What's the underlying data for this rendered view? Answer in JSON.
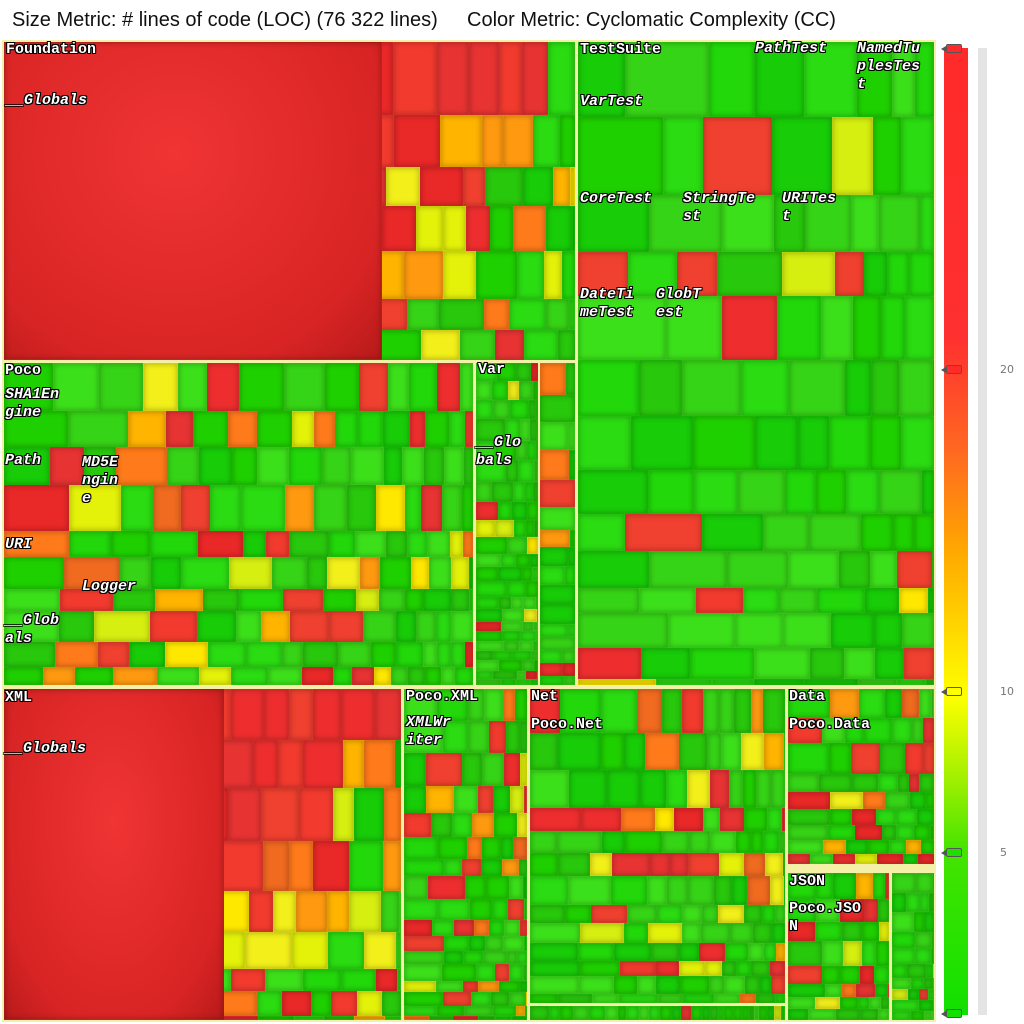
{
  "header": {
    "size_metric": "Size Metric: # lines of code (LOC) (76 322 lines)",
    "color_metric": "Color Metric: Cyclomatic Complexity (CC)"
  },
  "packages": {
    "foundation": {
      "name": "Foundation",
      "globals": "__Globals"
    },
    "foundation_poco": {
      "name": "Poco",
      "classes": [
        "SHA1En\ngine",
        "Path",
        "MD5E\nngin\ne",
        "URI",
        "Logger",
        "__Glob\nals"
      ]
    },
    "foundation_var": {
      "name": "Var",
      "globals": "__Glo\nbals"
    },
    "testsuite": {
      "name": "TestSuite",
      "classes": [
        "PathTest",
        "NamedTu\nplesTes\nt",
        "VarTest",
        "CoreTest",
        "StringTe\nst",
        "URITes\nt",
        "DateTi\nmeTest",
        "GlobT\nest"
      ]
    },
    "xml": {
      "name": "XML",
      "globals": "__Globals",
      "poco_xml": "Poco.XML",
      "xml_writer": "XMLWr\niter"
    },
    "net": {
      "name": "Net",
      "poco_net": "Poco.Net"
    },
    "data": {
      "name": "Data",
      "poco_data": "Poco.Data"
    },
    "json": {
      "name": "JSON",
      "poco_json": "Poco.JSO\nN"
    }
  },
  "legend": {
    "ticks": [
      "20",
      "10",
      "5"
    ],
    "colors": {
      "high": "#ff2a2a",
      "mid": "#ffff00",
      "low": "#11e000"
    }
  }
}
